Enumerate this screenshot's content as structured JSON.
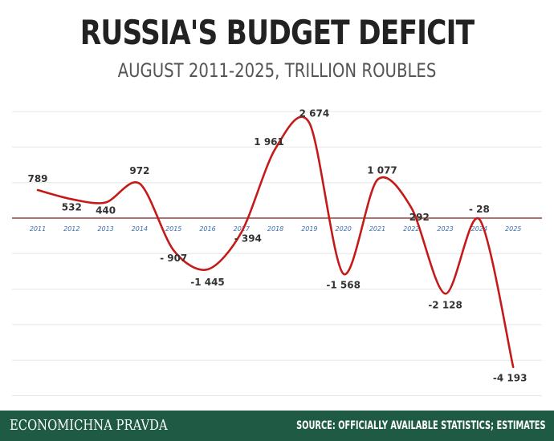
{
  "header": {
    "title": "RUSSIA'S BUDGET DEFICIT",
    "subtitle": "AUGUST 2011-2025, TRILLION ROUBLES"
  },
  "footer": {
    "brand": "ECONOMICHNA PRAVDA",
    "source": "SOURCE: OFFICIALLY AVAILABLE STATISTICS; ESTIMATES",
    "background_color": "#1e5a44"
  },
  "chart_data": {
    "type": "line",
    "title": "RUSSIA'S BUDGET DEFICIT",
    "subtitle": "AUGUST 2011-2025, TRILLION ROUBLES",
    "x": [
      "2011",
      "2012",
      "2013",
      "2014",
      "2015",
      "2016",
      "2017",
      "2018",
      "2019",
      "2020",
      "2021",
      "2022",
      "2023",
      "2024",
      "2025"
    ],
    "values": [
      789,
      532,
      440,
      972,
      -907,
      -1445,
      -394,
      1961,
      2674,
      -1568,
      1077,
      292,
      -2128,
      -28,
      -4193
    ],
    "data_labels": [
      "789",
      "532",
      "440",
      "972",
      "- 907",
      "-1 445",
      "- 394",
      "1 961",
      "2 674",
      "-1 568",
      "1 077",
      "292",
      "-2 128",
      "- 28",
      "-4 193"
    ],
    "ylim": [
      -5000,
      3000
    ],
    "grid": true,
    "line_color": "#c41a1a",
    "zero_line_color": "#8b1a1a",
    "grid_color": "#e6e6e6",
    "tick_color": "#3a6fb0"
  }
}
